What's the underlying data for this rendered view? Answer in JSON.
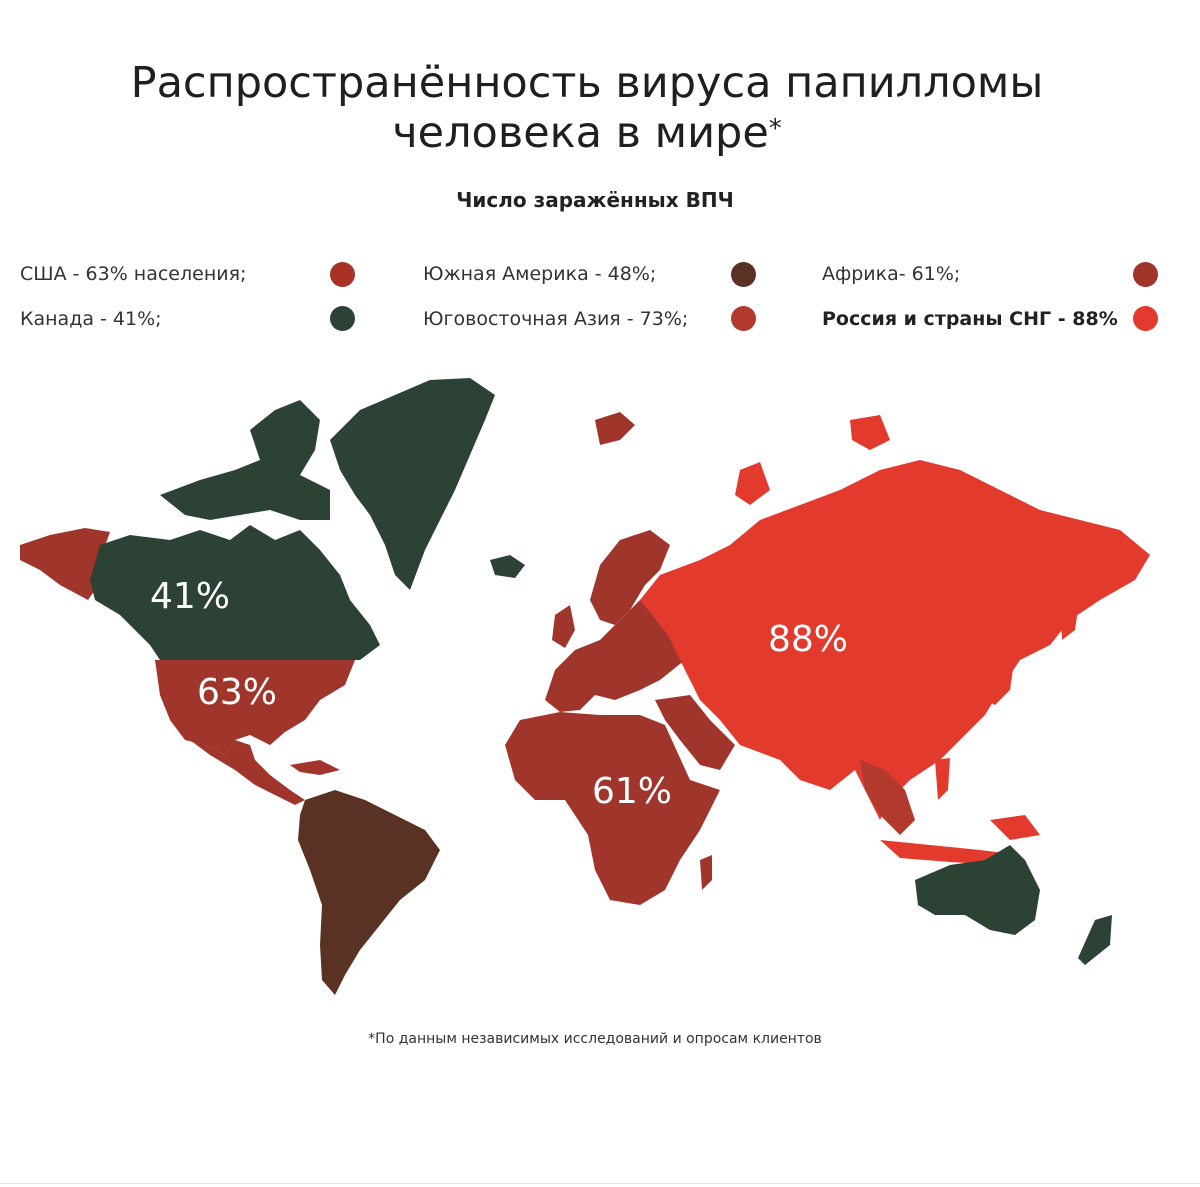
{
  "title": {
    "line1": "Распространённость вируса папилломы",
    "line2": "человека в мире",
    "star": "*"
  },
  "subtitle": "Число заражённых ВПЧ",
  "legend": [
    {
      "label": "США - 63% населения;",
      "color": "#a83226",
      "bold": false
    },
    {
      "label": "Южная Америка - 48%;",
      "color": "#5a3224",
      "bold": false
    },
    {
      "label": "Африка- 61%;",
      "color": "#a0352b",
      "bold": false
    },
    {
      "label": "Канада - 41%;",
      "color": "#2c4234",
      "bold": false
    },
    {
      "label": "Юговосточная Азия - 73%;",
      "color": "#b23a2c",
      "bold": false
    },
    {
      "label": "Россия и страны СНГ - 88%",
      "color": "#e33a2e",
      "bold": true
    }
  ],
  "map_labels": {
    "canada": "41%",
    "usa": "63%",
    "russia": "88%",
    "africa": "61%"
  },
  "footnote": "*По данным независимых исследований и опросам клиентов",
  "colors": {
    "canada_greenland_australia": "#2c4234",
    "usa_europe_africa": "#a0352b",
    "south_america": "#5a3224",
    "russia_cis": "#e33a2e",
    "se_asia": "#b23a2c"
  }
}
